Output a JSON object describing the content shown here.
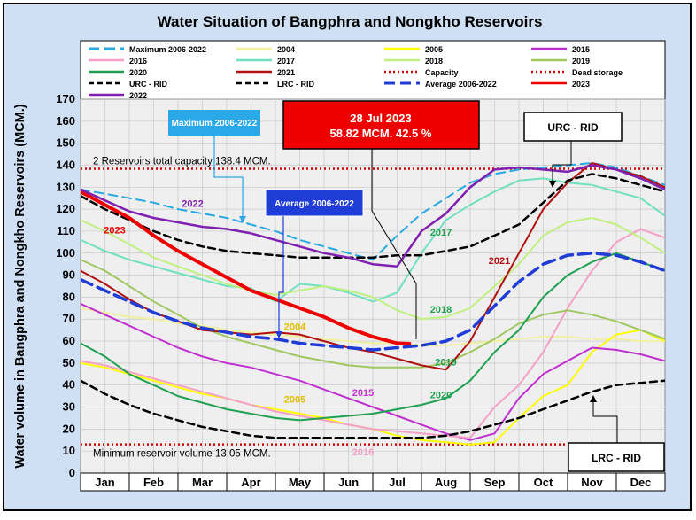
{
  "chart_data": {
    "type": "line",
    "title": "Water Situation of Bangphra and Nongkho Reservoirs",
    "ylabel": "Water volume in Bangphra and Nongkho Reservoirs (MCM.)",
    "xlabel": "",
    "categories": [
      "Jan",
      "Feb",
      "Mar",
      "Apr",
      "May",
      "Jun",
      "Jul",
      "Aug",
      "Sep",
      "Oct",
      "Nov",
      "Dec"
    ],
    "ylim": [
      0,
      170
    ],
    "yticks": [
      0,
      10,
      20,
      30,
      40,
      50,
      60,
      70,
      80,
      90,
      100,
      110,
      120,
      130,
      140,
      150,
      160,
      170
    ],
    "grid": true,
    "legend_placement": "top",
    "colors": {
      "plot_bg": "#efefef",
      "grid": "#c8c8c8",
      "outer_bg": "#cfe0f4",
      "callout_red": "#ee0000",
      "callout_blue": "#1f3cd6",
      "callout_sky": "#2aa8e8"
    },
    "legend": [
      {
        "name": "Maximum 2006-2022",
        "color": "#29a9e0",
        "dash": "long"
      },
      {
        "name": "2004",
        "color": "#f0f0a0",
        "dash": "solid"
      },
      {
        "name": "2005",
        "color": "#ffff00",
        "dash": "solid"
      },
      {
        "name": "2015",
        "color": "#c030d0",
        "dash": "solid"
      },
      {
        "name": "2016",
        "color": "#f4a0c8",
        "dash": "solid"
      },
      {
        "name": "2017",
        "color": "#70e0c0",
        "dash": "solid"
      },
      {
        "name": "2018",
        "color": "#c0f080",
        "dash": "solid"
      },
      {
        "name": "2019",
        "color": "#a0c860",
        "dash": "solid"
      },
      {
        "name": "2020",
        "color": "#20a050",
        "dash": "solid"
      },
      {
        "name": "2021",
        "color": "#b01010",
        "dash": "solid"
      },
      {
        "name": "Capacity",
        "color": "#cc0000",
        "dash": "dot"
      },
      {
        "name": "Dead storage",
        "color": "#cc0000",
        "dash": "dot"
      },
      {
        "name": "URC - RID",
        "color": "#000000",
        "dash": "dash"
      },
      {
        "name": "LRC - RID",
        "color": "#000000",
        "dash": "dash"
      },
      {
        "name": "Average 2006-2022",
        "color": "#1f3cd6",
        "dash": "long"
      },
      {
        "name": "2023",
        "color": "#ee0000",
        "dash": "solid"
      },
      {
        "name": "2022",
        "color": "#8020b0",
        "dash": "solid"
      }
    ],
    "reference_lines": [
      {
        "name": "Capacity",
        "value": 138.4,
        "label": "2 Reservoirs total capacity 138.4 MCM."
      },
      {
        "name": "Dead storage",
        "value": 13.05,
        "label": "Minimum reservoir volume 13.05 MCM."
      }
    ],
    "series": [
      {
        "name": "Maximum 2006-2022",
        "color": "#29a9e0",
        "width": 2,
        "dash": "10 6",
        "x": [
          0,
          0.5,
          1,
          1.5,
          2,
          2.5,
          3,
          3.5,
          4,
          4.5,
          5,
          5.5,
          6,
          6.5,
          7,
          7.5,
          8,
          8.5,
          9,
          9.5,
          10,
          10.5,
          11,
          11.5,
          12
        ],
        "y": [
          129,
          127,
          125,
          123,
          120,
          118,
          116,
          113,
          110,
          106,
          103,
          100,
          97,
          108,
          118,
          125,
          132,
          136,
          138,
          139,
          140,
          141,
          139,
          135,
          131
        ]
      },
      {
        "name": "2004",
        "color": "#f0f0a0",
        "width": 2,
        "x": [
          0,
          0.5,
          1,
          1.5,
          2,
          2.5,
          3,
          3.5,
          4,
          4.5,
          5,
          5.5,
          6,
          6.5,
          7,
          7.5,
          8,
          8.5,
          9,
          9.5,
          10,
          10.5,
          11,
          11.5,
          12
        ],
        "y": [
          75,
          73,
          71,
          70,
          68,
          67,
          65,
          64,
          63,
          62,
          61,
          60,
          59,
          59,
          58,
          58,
          59,
          60,
          61,
          62,
          62,
          61,
          61,
          60,
          60
        ]
      },
      {
        "name": "2005",
        "color": "#ffff00",
        "width": 2,
        "x": [
          0,
          0.5,
          1,
          1.5,
          2,
          2.5,
          3,
          3.5,
          4,
          4.5,
          5,
          5.5,
          6,
          6.5,
          7,
          7.5,
          8,
          8.5,
          9,
          9.5,
          10,
          10.5,
          11,
          11.5,
          12
        ],
        "y": [
          50,
          48,
          45,
          42,
          39,
          36,
          34,
          31,
          29,
          27,
          25,
          22,
          20,
          17,
          15,
          14,
          13,
          14,
          25,
          35,
          40,
          55,
          63,
          65,
          60
        ]
      },
      {
        "name": "2015",
        "color": "#c030d0",
        "width": 2,
        "x": [
          0,
          0.5,
          1,
          1.5,
          2,
          2.5,
          3,
          3.5,
          4,
          4.5,
          5,
          5.5,
          6,
          6.5,
          7,
          7.5,
          8,
          8.5,
          9,
          9.5,
          10,
          10.5,
          11,
          11.5,
          12
        ],
        "y": [
          77,
          72,
          67,
          62,
          57,
          53,
          50,
          48,
          45,
          42,
          38,
          34,
          30,
          26,
          22,
          18,
          15,
          18,
          34,
          45,
          51,
          57,
          56,
          54,
          51
        ]
      },
      {
        "name": "2016",
        "color": "#f4a0c8",
        "width": 2,
        "x": [
          0,
          0.5,
          1,
          1.5,
          2,
          2.5,
          3,
          3.5,
          4,
          4.5,
          5,
          5.5,
          6,
          6.5,
          7,
          7.5,
          8,
          8.5,
          9,
          9.5,
          10,
          10.5,
          11,
          11.5,
          12
        ],
        "y": [
          51,
          49,
          46,
          43,
          40,
          37,
          34,
          31,
          28,
          26,
          24,
          22,
          20,
          19,
          18,
          17,
          16,
          30,
          40,
          55,
          75,
          92,
          105,
          111,
          107
        ]
      },
      {
        "name": "2017",
        "color": "#70e0c0",
        "width": 2,
        "x": [
          0,
          0.5,
          1,
          1.5,
          2,
          2.5,
          3,
          3.5,
          4,
          4.5,
          5,
          5.5,
          6,
          6.5,
          7,
          7.5,
          8,
          8.5,
          9,
          9.5,
          10,
          10.5,
          11,
          11.5,
          12
        ],
        "y": [
          106,
          101,
          97,
          94,
          91,
          88,
          85,
          84,
          78,
          86,
          85,
          82,
          78,
          82,
          100,
          115,
          122,
          128,
          133,
          134,
          132,
          131,
          128,
          125,
          117
        ]
      },
      {
        "name": "2018",
        "color": "#c0f080",
        "width": 2,
        "x": [
          0,
          0.5,
          1,
          1.5,
          2,
          2.5,
          3,
          3.5,
          4,
          4.5,
          5,
          5.5,
          6,
          6.5,
          7,
          7.5,
          8,
          8.5,
          9,
          9.5,
          10,
          10.5,
          11,
          11.5,
          12
        ],
        "y": [
          115,
          110,
          104,
          98,
          94,
          90,
          86,
          83,
          81,
          83,
          85,
          83,
          80,
          74,
          70,
          71,
          75,
          85,
          95,
          108,
          114,
          116,
          113,
          107,
          100
        ]
      },
      {
        "name": "2019",
        "color": "#a0c860",
        "width": 2,
        "x": [
          0,
          0.5,
          1,
          1.5,
          2,
          2.5,
          3,
          3.5,
          4,
          4.5,
          5,
          5.5,
          6,
          6.5,
          7,
          7.5,
          8,
          8.5,
          9,
          9.5,
          10,
          10.5,
          11,
          11.5,
          12
        ],
        "y": [
          97,
          92,
          85,
          78,
          72,
          66,
          62,
          59,
          56,
          53,
          51,
          49,
          48,
          48,
          48,
          50,
          55,
          61,
          68,
          72,
          74,
          72,
          69,
          65,
          61
        ]
      },
      {
        "name": "2020",
        "color": "#20a050",
        "width": 2,
        "x": [
          0,
          0.5,
          1,
          1.5,
          2,
          2.5,
          3,
          3.5,
          4,
          4.5,
          5,
          5.5,
          6,
          6.5,
          7,
          7.5,
          8,
          8.5,
          9,
          9.5,
          10,
          10.5,
          11,
          11.5,
          12
        ],
        "y": [
          59,
          53,
          45,
          40,
          35,
          32,
          29,
          27,
          25,
          24,
          25,
          26,
          27,
          29,
          31,
          34,
          42,
          55,
          65,
          80,
          90,
          96,
          100,
          96,
          92
        ]
      },
      {
        "name": "2021",
        "color": "#b01010",
        "width": 2,
        "x": [
          0,
          0.5,
          1,
          1.5,
          2,
          2.5,
          3,
          3.5,
          4,
          4.5,
          5,
          5.5,
          6,
          6.5,
          7,
          7.5,
          8,
          8.5,
          9,
          9.5,
          10,
          10.5,
          11,
          11.5,
          12
        ],
        "y": [
          92,
          86,
          79,
          73,
          69,
          65,
          64,
          63,
          64,
          63,
          60,
          57,
          55,
          52,
          49,
          47,
          60,
          80,
          100,
          120,
          132,
          141,
          138,
          135,
          130
        ]
      },
      {
        "name": "URC - RID",
        "color": "#000000",
        "width": 2.5,
        "dash": "8 5",
        "x": [
          0,
          0.5,
          1,
          1.5,
          2,
          2.5,
          3,
          3.5,
          4,
          4.5,
          5,
          5.5,
          6,
          6.5,
          7,
          7.5,
          8,
          8.5,
          9,
          9.5,
          10,
          10.5,
          11,
          11.5,
          12
        ],
        "y": [
          126,
          120,
          115,
          110,
          106,
          103,
          101,
          100,
          99,
          98,
          98,
          98,
          98,
          99,
          99,
          101,
          103,
          108,
          113,
          123,
          133,
          136,
          134,
          131,
          128
        ]
      },
      {
        "name": "LRC - RID",
        "color": "#000000",
        "width": 2.5,
        "dash": "8 5",
        "x": [
          0,
          0.5,
          1,
          1.5,
          2,
          2.5,
          3,
          3.5,
          4,
          4.5,
          5,
          5.5,
          6,
          6.5,
          7,
          7.5,
          8,
          8.5,
          9,
          9.5,
          10,
          10.5,
          11,
          11.5,
          12
        ],
        "y": [
          42,
          36,
          31,
          27,
          24,
          21,
          19,
          17,
          16,
          16,
          16,
          16,
          16,
          16,
          16,
          17,
          19,
          22,
          25,
          29,
          33,
          37,
          40,
          41,
          42
        ]
      },
      {
        "name": "Average 2006-2022",
        "color": "#1f3cd6",
        "width": 3.5,
        "dash": "14 7",
        "x": [
          0,
          0.5,
          1,
          1.5,
          2,
          2.5,
          3,
          3.5,
          4,
          4.5,
          5,
          5.5,
          6,
          6.5,
          7,
          7.5,
          8,
          8.5,
          9,
          9.5,
          10,
          10.5,
          11,
          11.5,
          12
        ],
        "y": [
          88,
          83,
          78,
          73,
          69,
          66,
          64,
          62,
          61,
          59,
          58,
          57,
          56,
          57,
          58,
          60,
          65,
          76,
          87,
          95,
          99,
          100,
          99,
          96,
          92
        ]
      },
      {
        "name": "2023",
        "color": "#ee0000",
        "width": 4,
        "x": [
          0,
          0.5,
          1,
          1.5,
          2,
          2.5,
          3,
          3.5,
          4,
          4.5,
          5,
          5.5,
          6,
          6.5,
          6.75
        ],
        "y": [
          128,
          122,
          116,
          108,
          101,
          95,
          89,
          83,
          79,
          75,
          71,
          66,
          62,
          59,
          58.82
        ]
      },
      {
        "name": "2022",
        "color": "#8020b0",
        "width": 2.5,
        "x": [
          0,
          0.5,
          1,
          1.5,
          2,
          2.5,
          3,
          3.5,
          4,
          4.5,
          5,
          5.5,
          6,
          6.5,
          7,
          7.5,
          8,
          8.5,
          9,
          9.5,
          10,
          10.5,
          11,
          11.5,
          12
        ],
        "y": [
          129,
          124,
          119,
          116,
          114,
          112,
          111,
          109,
          106,
          103,
          100,
          98,
          95,
          94,
          110,
          118,
          130,
          138,
          139,
          138,
          137,
          140,
          138,
          134,
          129
        ]
      }
    ],
    "annotations": {
      "callout_2023_date": "28 Jul 2023",
      "callout_2023_value": "58.82 MCM. 42.5 %",
      "callout_max": "Maximum 2006-2022",
      "callout_avg": "Average 2006-2022",
      "callout_urc": "URC - RID",
      "callout_lrc": "LRC - RID",
      "capacity_text": "2 Reservoirs total capacity 138.4 MCM.",
      "dead_text": "Minimum reservoir volume 13.05 MCM.",
      "labels": [
        {
          "text": "2022",
          "color": "#8020b0",
          "x": 2.3,
          "y": 121
        },
        {
          "text": "2023",
          "color": "#ee0000",
          "x": 0.7,
          "y": 109
        },
        {
          "text": "2017",
          "color": "#20a050",
          "x": 7.4,
          "y": 108
        },
        {
          "text": "2021",
          "color": "#b01010",
          "x": 8.6,
          "y": 95
        },
        {
          "text": "2018",
          "color": "#20a050",
          "x": 7.4,
          "y": 73
        },
        {
          "text": "2004",
          "color": "#e0c000",
          "x": 4.4,
          "y": 65
        },
        {
          "text": "2019",
          "color": "#20a050",
          "x": 7.5,
          "y": 49
        },
        {
          "text": "2005",
          "color": "#e0c000",
          "x": 4.4,
          "y": 32
        },
        {
          "text": "2015",
          "color": "#c030d0",
          "x": 5.8,
          "y": 35
        },
        {
          "text": "2020",
          "color": "#20a050",
          "x": 7.4,
          "y": 34
        },
        {
          "text": "2016",
          "color": "#f4a0c8",
          "x": 5.8,
          "y": 8
        }
      ]
    }
  }
}
